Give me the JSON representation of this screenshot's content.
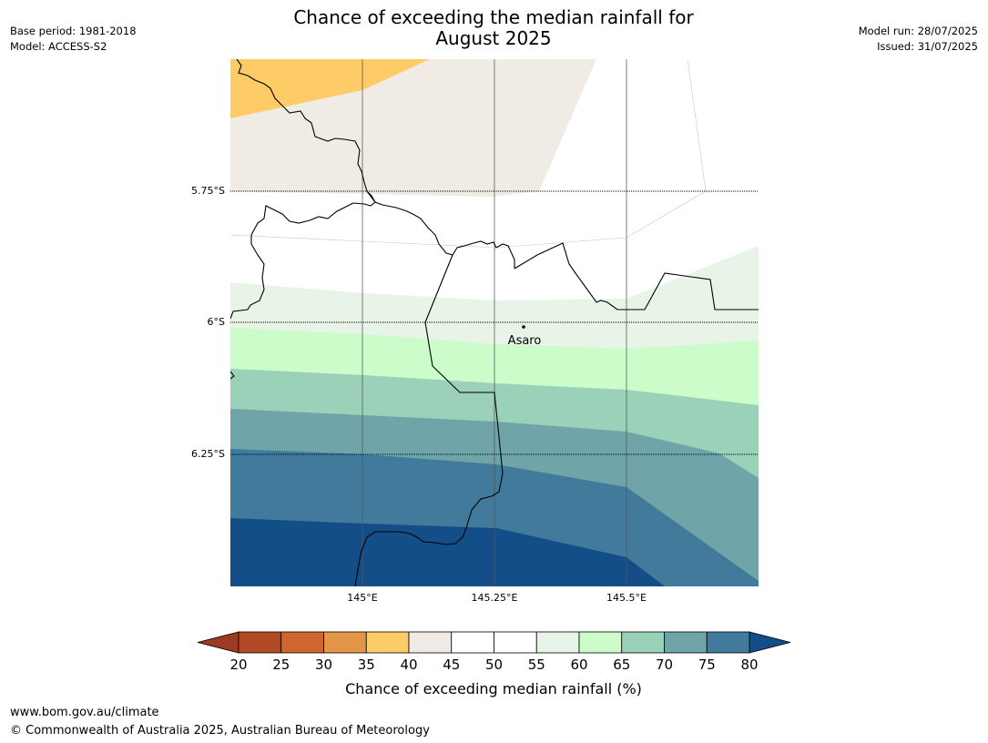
{
  "header": {
    "title_line1": "Chance of exceeding the median rainfall for",
    "title_line2": "August 2025",
    "base_period": "Base period: 1981-2018",
    "model": "Model: ACCESS-S2",
    "model_run": "Model run: 28/07/2025",
    "issued": "Issued: 31/07/2025"
  },
  "map": {
    "lat_labels": [
      "5.75°S",
      "6°S",
      "6.25°S"
    ],
    "lon_labels": [
      "145°E",
      "145.25°E",
      "145.5°E"
    ],
    "place": "Asaro",
    "region_colors": {
      "r35_40": "#fecc66",
      "r40_45": "#f0ebe5",
      "r45_55": "#ffffff",
      "r55_60": "#e8f4e8",
      "r60_65": "#cbfcca",
      "r65_70": "#9bd1b8",
      "r70_75": "#6fa5a8",
      "r75_80": "#417a9a",
      "r80_plus": "#134e89"
    }
  },
  "colorbar": {
    "label": "Chance of exceeding median rainfall (%)",
    "ticks": [
      "20",
      "25",
      "30",
      "35",
      "40",
      "45",
      "50",
      "55",
      "60",
      "65",
      "70",
      "75",
      "80"
    ],
    "below_color": "#9c3a23",
    "above_color": "#134e89",
    "segment_colors": [
      "#b14a25",
      "#ce6630",
      "#e39746",
      "#fecc66",
      "#f0ebe5",
      "#ffffff",
      "#ffffff",
      "#e8f4e8",
      "#cbfcca",
      "#9bd1b8",
      "#6fa5a8",
      "#417a9a"
    ]
  },
  "footer": {
    "url": "www.bom.gov.au/climate",
    "copyright": "© Commonwealth of Australia 2025, Australian Bureau of Meteorology"
  }
}
